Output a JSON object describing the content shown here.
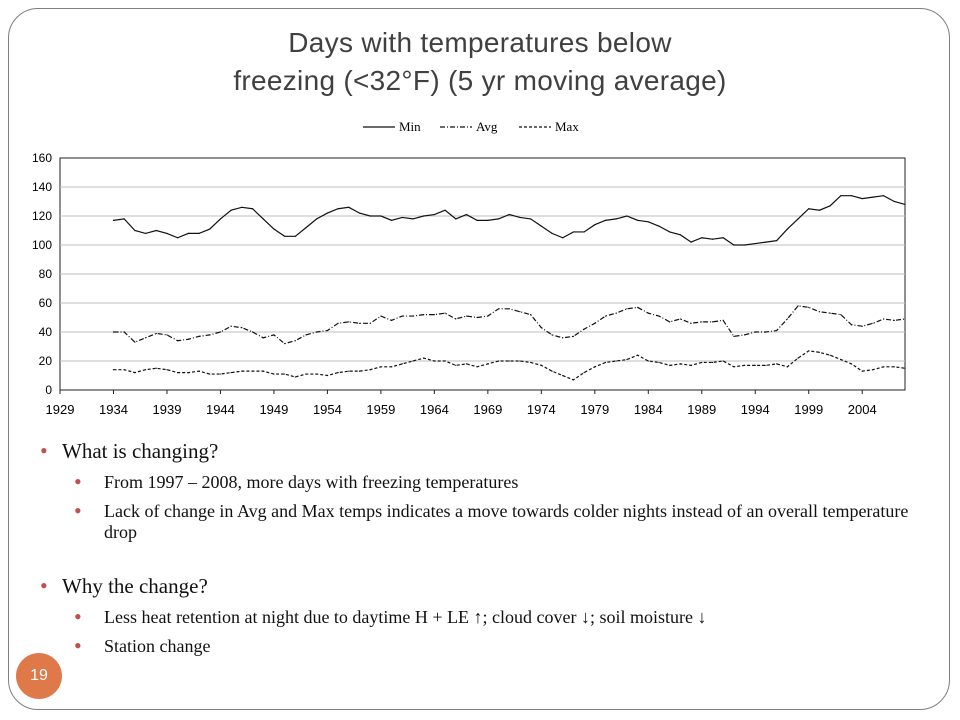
{
  "slide": {
    "title_line1": "Days with temperatures below",
    "title_line2": "freezing (<32°F) (5 yr moving average)",
    "page_number": "19"
  },
  "bullets": {
    "q1": "What is changing?",
    "q1_items": [
      "From 1997 – 2008, more days with freezing temperatures",
      "Lack of change in Avg and Max temps indicates a move towards colder nights instead of an overall temperature drop"
    ],
    "q2": "Why the change?",
    "q2_items": [
      "Less heat retention at night due to daytime H + LE ↑; cloud cover ↓; soil moisture ↓",
      "Station change"
    ]
  },
  "chart_data": {
    "type": "line",
    "xlabel": "",
    "ylabel": "",
    "xlim": [
      1929,
      2008
    ],
    "ylim": [
      0,
      160
    ],
    "yticks": [
      0,
      20,
      40,
      60,
      80,
      100,
      120,
      140,
      160
    ],
    "xticks": [
      1929,
      1934,
      1939,
      1944,
      1949,
      1954,
      1959,
      1964,
      1969,
      1974,
      1979,
      1984,
      1989,
      1994,
      1999,
      2004
    ],
    "grid": "horizontal",
    "legend_position": "top",
    "x": [
      1934,
      1935,
      1936,
      1937,
      1938,
      1939,
      1940,
      1941,
      1942,
      1943,
      1944,
      1945,
      1946,
      1947,
      1948,
      1949,
      1950,
      1951,
      1952,
      1953,
      1954,
      1955,
      1956,
      1957,
      1958,
      1959,
      1960,
      1961,
      1962,
      1963,
      1964,
      1965,
      1966,
      1967,
      1968,
      1969,
      1970,
      1971,
      1972,
      1973,
      1974,
      1975,
      1976,
      1977,
      1978,
      1979,
      1980,
      1981,
      1982,
      1983,
      1984,
      1985,
      1986,
      1987,
      1988,
      1989,
      1990,
      1991,
      1992,
      1993,
      1994,
      1995,
      1996,
      1997,
      1998,
      1999,
      2000,
      2001,
      2002,
      2003,
      2004,
      2005,
      2006,
      2007,
      2008
    ],
    "series": [
      {
        "name": "Min",
        "style": "solid",
        "values": [
          117,
          118,
          110,
          108,
          110,
          108,
          105,
          108,
          108,
          111,
          118,
          124,
          126,
          125,
          118,
          111,
          106,
          106,
          112,
          118,
          122,
          125,
          126,
          122,
          120,
          120,
          117,
          119,
          118,
          120,
          121,
          124,
          118,
          121,
          117,
          117,
          118,
          121,
          119,
          118,
          113,
          108,
          105,
          109,
          109,
          114,
          117,
          118,
          120,
          117,
          116,
          113,
          109,
          107,
          102,
          105,
          104,
          105,
          100,
          100,
          101,
          102,
          103,
          111,
          118,
          125,
          124,
          127,
          134,
          134,
          132,
          133,
          134,
          130,
          128
        ]
      },
      {
        "name": "Avg",
        "style": "dashdot",
        "values": [
          40,
          40,
          33,
          36,
          39,
          38,
          34,
          35,
          37,
          38,
          40,
          44,
          43,
          40,
          36,
          38,
          32,
          34,
          38,
          40,
          41,
          46,
          47,
          46,
          46,
          51,
          48,
          51,
          51,
          52,
          52,
          53,
          49,
          51,
          50,
          51,
          56,
          56,
          54,
          52,
          43,
          38,
          36,
          37,
          42,
          46,
          51,
          53,
          56,
          57,
          53,
          51,
          47,
          49,
          46,
          47,
          47,
          48,
          37,
          38,
          40,
          40,
          41,
          49,
          58,
          57,
          54,
          53,
          52,
          45,
          44,
          46,
          49,
          48,
          49
        ]
      },
      {
        "name": "Max",
        "style": "dashed",
        "values": [
          14,
          14,
          12,
          14,
          15,
          14,
          12,
          12,
          13,
          11,
          11,
          12,
          13,
          13,
          13,
          11,
          11,
          9,
          11,
          11,
          10,
          12,
          13,
          13,
          14,
          16,
          16,
          18,
          20,
          22,
          20,
          20,
          17,
          18,
          16,
          18,
          20,
          20,
          20,
          19,
          17,
          13,
          10,
          7,
          12,
          16,
          19,
          20,
          21,
          24,
          20,
          19,
          17,
          18,
          17,
          19,
          19,
          20,
          16,
          17,
          17,
          17,
          18,
          16,
          22,
          27,
          26,
          24,
          21,
          18,
          13,
          14,
          16,
          16,
          15
        ]
      }
    ]
  }
}
